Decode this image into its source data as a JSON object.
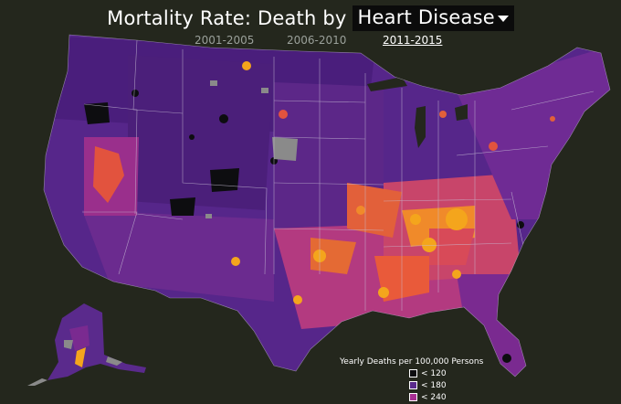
{
  "header": {
    "title_prefix": "Mortality Rate: Death by",
    "cause_selected": "Heart Disease",
    "caret_icon": "chevron-down-icon"
  },
  "periods": [
    {
      "label": "2001-2005",
      "active": false
    },
    {
      "label": "2006-2010",
      "active": false
    },
    {
      "label": "2011-2015",
      "active": true
    }
  ],
  "legend": {
    "title": "Yearly Deaths per 100,000 Persons",
    "items": [
      {
        "label": "< 120",
        "color": "#0d0d10"
      },
      {
        "label": "< 180",
        "color": "#5a2a8c"
      },
      {
        "label": "< 240",
        "color": "#a82f92"
      }
    ]
  },
  "colors": {
    "background": "#24271d",
    "very_low": "#0d0d10",
    "low": "#4c1f78",
    "mid": "#6a2a8f",
    "high": "#a82f92",
    "very_high": "#e2533e",
    "highest": "#f4a51c",
    "no_data": "#8a8a8a",
    "borders": "#c8bfd6"
  }
}
